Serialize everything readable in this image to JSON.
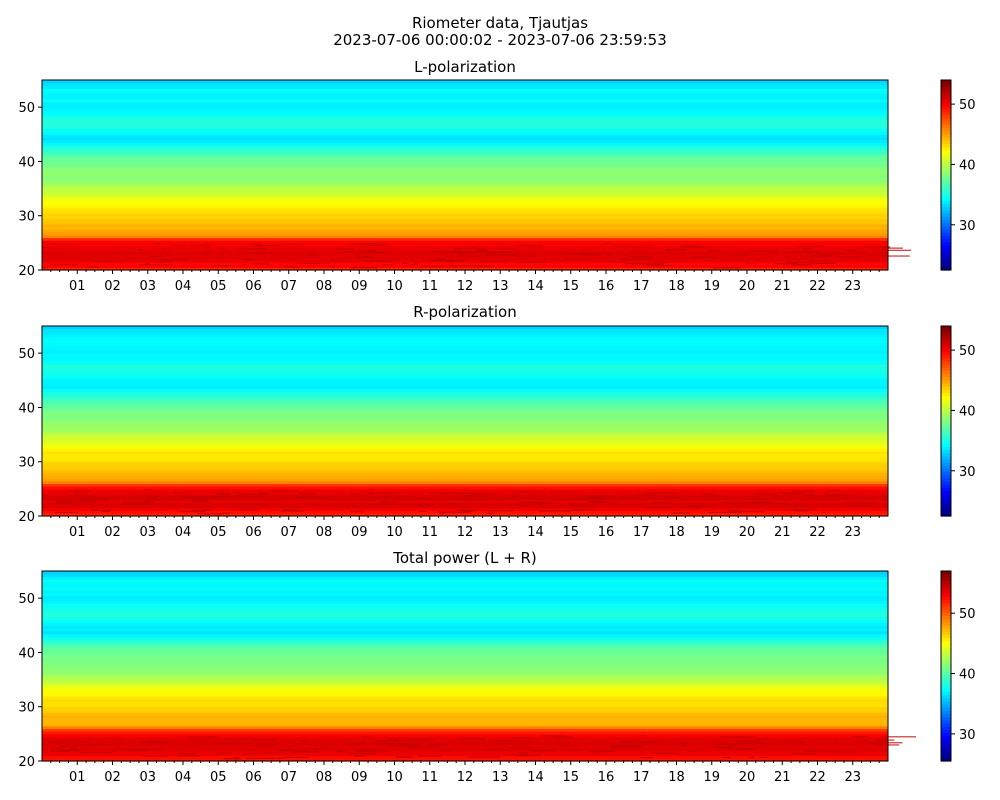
{
  "figure": {
    "title_line1": "Riometer data, Tjautjas",
    "title_line2": "2023-07-06 00:00:02 - 2023-07-06 23:59:53"
  },
  "chart_data": [
    {
      "type": "heatmap",
      "title": "L-polarization",
      "x_tick_labels": [
        "01",
        "02",
        "03",
        "04",
        "05",
        "06",
        "07",
        "08",
        "09",
        "10",
        "11",
        "12",
        "13",
        "14",
        "15",
        "16",
        "17",
        "18",
        "19",
        "20",
        "21",
        "22",
        "23"
      ],
      "x_range_hours": [
        0,
        24
      ],
      "y_ticks": [
        20,
        30,
        40,
        50
      ],
      "ylim": [
        20,
        55
      ],
      "colorbar": {
        "ticks": [
          30,
          40,
          50
        ],
        "range": [
          22.5,
          54
        ],
        "colormap": "jet"
      },
      "value_profile": {
        "freq_low": 20,
        "freq_high": 55,
        "bottom_band_peak": 51,
        "top_band_value": 33
      }
    },
    {
      "type": "heatmap",
      "title": "R-polarization",
      "x_tick_labels": [
        "01",
        "02",
        "03",
        "04",
        "05",
        "06",
        "07",
        "08",
        "09",
        "10",
        "11",
        "12",
        "13",
        "14",
        "15",
        "16",
        "17",
        "18",
        "19",
        "20",
        "21",
        "22",
        "23"
      ],
      "x_range_hours": [
        0,
        24
      ],
      "y_ticks": [
        20,
        30,
        40,
        50
      ],
      "ylim": [
        20,
        55
      ],
      "colorbar": {
        "ticks": [
          30,
          40,
          50
        ],
        "range": [
          22.5,
          54
        ],
        "colormap": "jet"
      },
      "value_profile": {
        "freq_low": 20,
        "freq_high": 55,
        "bottom_band_peak": 51,
        "top_band_value": 33
      }
    },
    {
      "type": "heatmap",
      "title": "Total power (L + R)",
      "x_tick_labels": [
        "01",
        "02",
        "03",
        "04",
        "05",
        "06",
        "07",
        "08",
        "09",
        "10",
        "11",
        "12",
        "13",
        "14",
        "15",
        "16",
        "17",
        "18",
        "19",
        "20",
        "21",
        "22",
        "23"
      ],
      "x_range_hours": [
        0,
        24
      ],
      "y_ticks": [
        20,
        30,
        40,
        50
      ],
      "ylim": [
        20,
        55
      ],
      "colorbar": {
        "ticks": [
          30,
          40,
          50
        ],
        "range": [
          25.5,
          57
        ],
        "colormap": "jet"
      },
      "value_profile": {
        "freq_low": 20,
        "freq_high": 55,
        "bottom_band_peak": 54,
        "top_band_value": 36
      }
    }
  ]
}
